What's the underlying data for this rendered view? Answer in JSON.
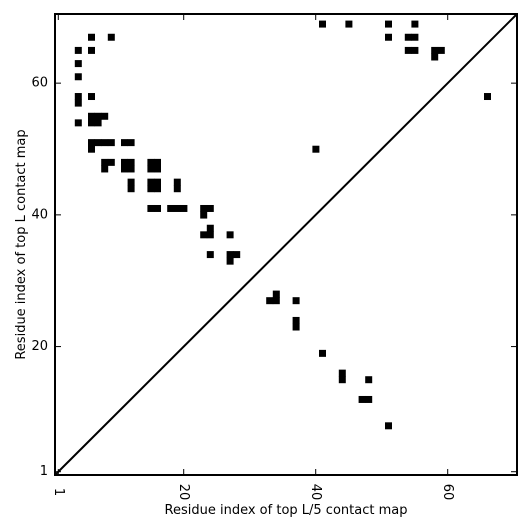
{
  "chart_data": {
    "type": "heatmap",
    "xlabel": "Residue index of top L/5 contact map",
    "ylabel": "Residue index of top L contact map",
    "xlim": [
      0.5,
      70.5
    ],
    "ylim": [
      0.5,
      70.5
    ],
    "x_ticks": [
      1,
      20,
      40,
      60
    ],
    "y_ticks": [
      1,
      20,
      40,
      60
    ],
    "grid": false,
    "diagonal": true,
    "cell_color": "#000000",
    "upper_contacts": [
      [
        41,
        69
      ],
      [
        45,
        69
      ],
      [
        51,
        69
      ],
      [
        55,
        69
      ],
      [
        6,
        67
      ],
      [
        9,
        67
      ],
      [
        51,
        67
      ],
      [
        54,
        67
      ],
      [
        55,
        67
      ],
      [
        4,
        65
      ],
      [
        6,
        65
      ],
      [
        54,
        65
      ],
      [
        55,
        65
      ],
      [
        58,
        65
      ],
      [
        59,
        65
      ],
      [
        58,
        64
      ],
      [
        4,
        63
      ],
      [
        4,
        61
      ],
      [
        4,
        58
      ],
      [
        6,
        58
      ],
      [
        4,
        57
      ],
      [
        6,
        55
      ],
      [
        7,
        55
      ],
      [
        8,
        55
      ],
      [
        6,
        54
      ],
      [
        7,
        54
      ],
      [
        4,
        54
      ],
      [
        6,
        51
      ],
      [
        7,
        51
      ],
      [
        8,
        51
      ],
      [
        9,
        51
      ],
      [
        11,
        51
      ],
      [
        12,
        51
      ],
      [
        6,
        50
      ],
      [
        40,
        50
      ],
      [
        8,
        48
      ],
      [
        9,
        48
      ],
      [
        11,
        48
      ],
      [
        12,
        48
      ],
      [
        15,
        48
      ],
      [
        16,
        48
      ],
      [
        8,
        47
      ],
      [
        11,
        47
      ],
      [
        12,
        47
      ],
      [
        15,
        47
      ],
      [
        16,
        47
      ],
      [
        12,
        45
      ],
      [
        15,
        45
      ],
      [
        16,
        45
      ],
      [
        19,
        45
      ],
      [
        12,
        44
      ],
      [
        15,
        44
      ],
      [
        16,
        44
      ],
      [
        19,
        44
      ],
      [
        15,
        41
      ],
      [
        16,
        41
      ],
      [
        18,
        41
      ],
      [
        19,
        41
      ],
      [
        20,
        41
      ],
      [
        23,
        41
      ],
      [
        24,
        41
      ],
      [
        23,
        40
      ],
      [
        24,
        38
      ],
      [
        23,
        37
      ],
      [
        24,
        37
      ],
      [
        27,
        37
      ],
      [
        24,
        34
      ],
      [
        27,
        34
      ],
      [
        28,
        34
      ],
      [
        27,
        33
      ],
      [
        34,
        28
      ],
      [
        33,
        27
      ],
      [
        34,
        27
      ],
      [
        37,
        27
      ],
      [
        37,
        24
      ],
      [
        37,
        23
      ],
      [
        41,
        19
      ],
      [
        44,
        16
      ],
      [
        44,
        15
      ],
      [
        48,
        15
      ],
      [
        47,
        12
      ],
      [
        48,
        12
      ],
      [
        51,
        8
      ]
    ],
    "lower_contacts": [
      [
        66,
        58
      ]
    ]
  }
}
